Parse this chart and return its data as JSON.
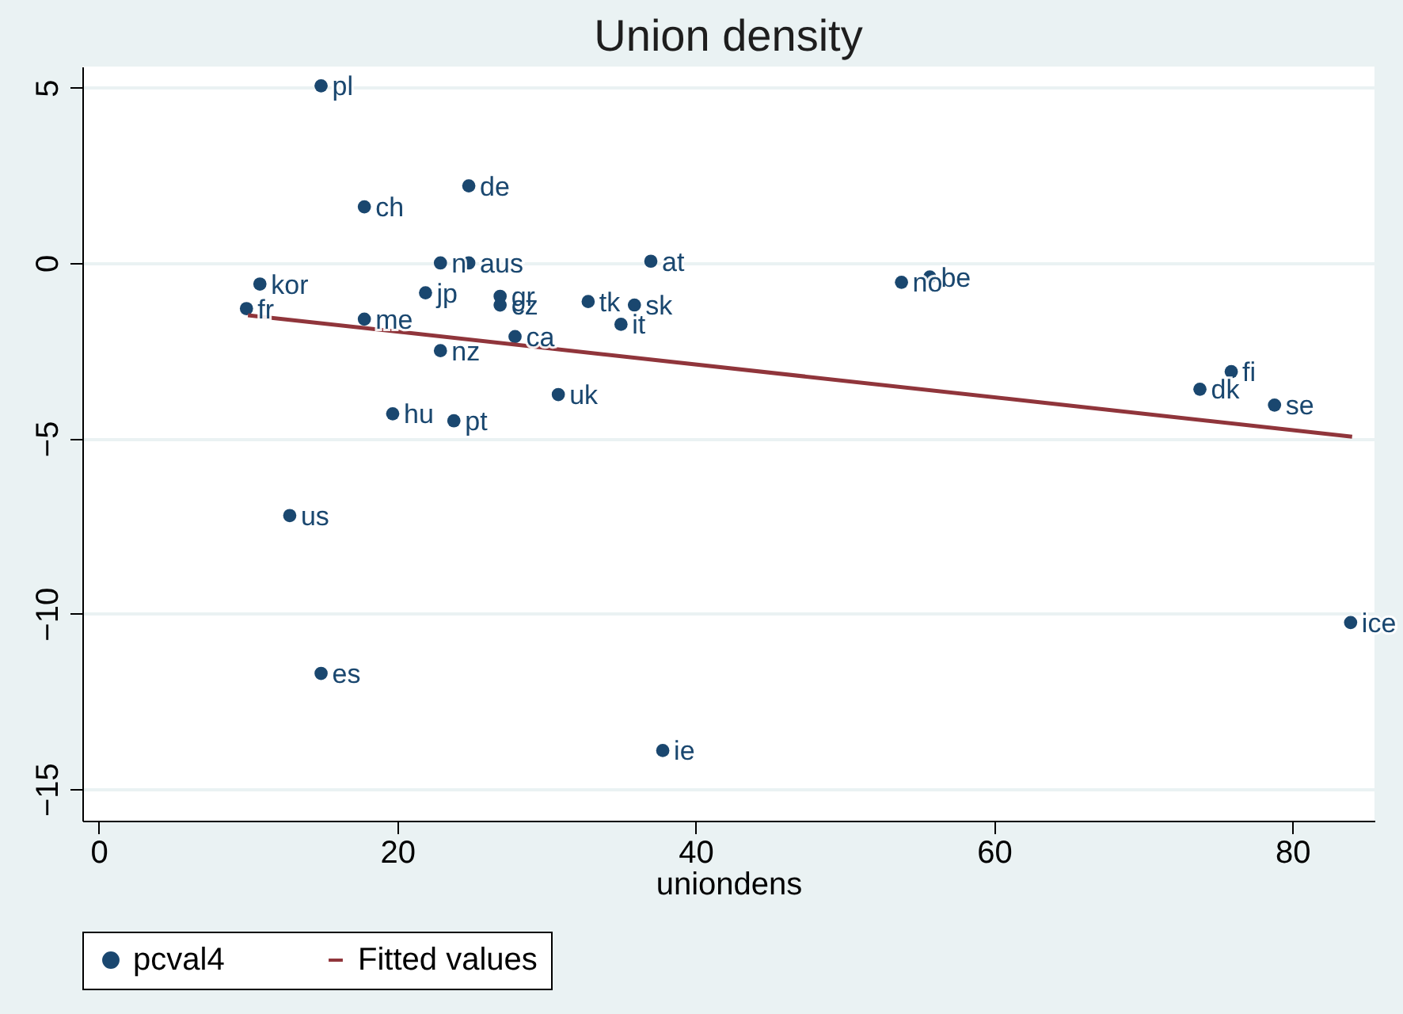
{
  "chart_data": {
    "type": "scatter",
    "title": "Union density",
    "xlabel": "uniondens",
    "xlim": [
      -1.1,
      85.5
    ],
    "ylim": [
      -15.9,
      5.6
    ],
    "xticks": [
      0,
      20,
      40,
      60,
      80
    ],
    "yticks": [
      -15,
      -10,
      -5,
      0,
      5
    ],
    "grid": "y",
    "legend": "bottom",
    "series": [
      {
        "name": "pcval4",
        "color": "#1a476f",
        "marker": "circle",
        "x": [
          14.9,
          17.8,
          24.8,
          22.9,
          24.8,
          37.0,
          10.8,
          9.9,
          21.9,
          26.9,
          26.9,
          32.8,
          35.9,
          35.0,
          17.8,
          27.9,
          22.9,
          30.8,
          19.7,
          23.8,
          53.8,
          55.7,
          73.8,
          75.9,
          78.8,
          83.9,
          12.8,
          14.9,
          37.8
        ],
        "values": [
          5.05,
          1.6,
          2.2,
          0.0,
          0.0,
          0.05,
          -0.6,
          -1.3,
          -0.85,
          -0.95,
          -1.2,
          -1.1,
          -1.2,
          -1.75,
          -1.6,
          -2.1,
          -2.5,
          -3.75,
          -4.3,
          -4.5,
          -0.55,
          -0.4,
          -3.6,
          -3.1,
          -4.05,
          -10.25,
          -7.2,
          -11.7,
          -13.9
        ],
        "value_labels": [
          "pl",
          "ch",
          "de",
          "n",
          "aus",
          "at",
          "kor",
          "fr",
          "jp",
          "gr",
          "cz",
          "tk",
          "sk",
          "it",
          "me",
          "ca",
          "nz",
          "uk",
          "hu",
          "pt",
          "no",
          "be",
          "dk",
          "fi",
          "se",
          "ice",
          "us",
          "es",
          "ie"
        ]
      },
      {
        "name": "Fitted values",
        "color": "#90353b",
        "type": "line",
        "line_style": "solid",
        "x": [
          10,
          84
        ],
        "values": [
          -1.49,
          -4.95
        ]
      }
    ]
  }
}
